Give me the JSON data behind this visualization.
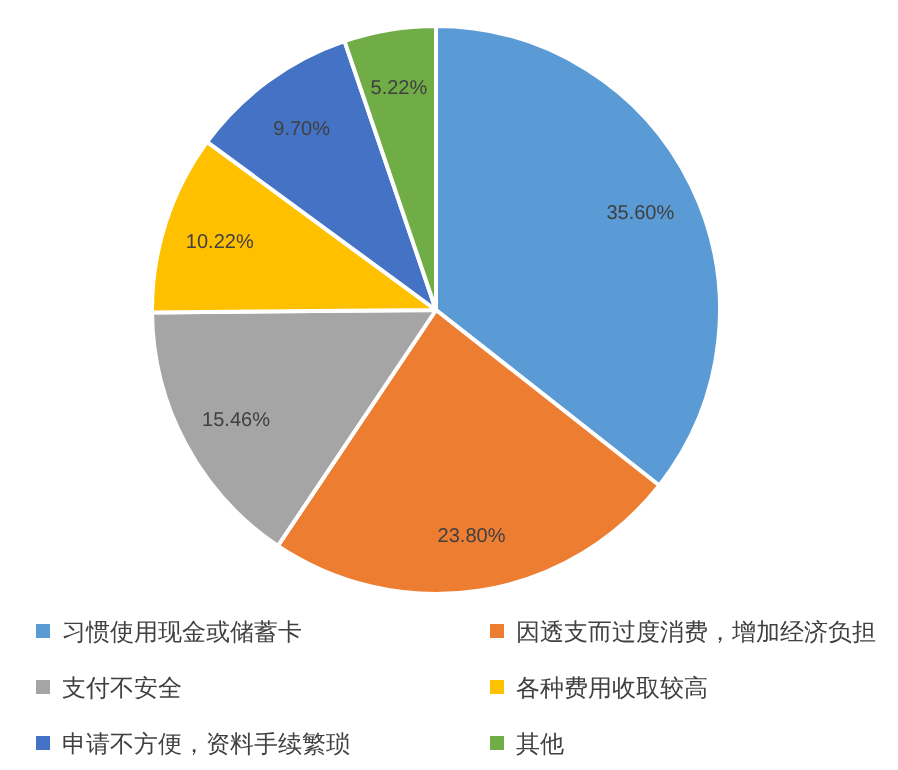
{
  "chart_data": {
    "type": "pie",
    "categories": [
      "习惯使用现金或储蓄卡",
      "因透支而过度消费，增加经济负担",
      "支付不安全",
      "各种费用收取较高",
      "申请不方便，资料手续繁琐",
      "其他"
    ],
    "values": [
      35.6,
      23.8,
      15.46,
      10.22,
      9.7,
      5.22
    ],
    "colors": [
      "#5b9bd5",
      "#ed7d31",
      "#a5a5a5",
      "#ffc000",
      "#4472c4",
      "#70ad47"
    ],
    "value_labels": [
      "35.60%",
      "23.80%",
      "15.46%",
      "10.22%",
      "9.70%",
      "5.22%"
    ],
    "legend": "bottom"
  }
}
